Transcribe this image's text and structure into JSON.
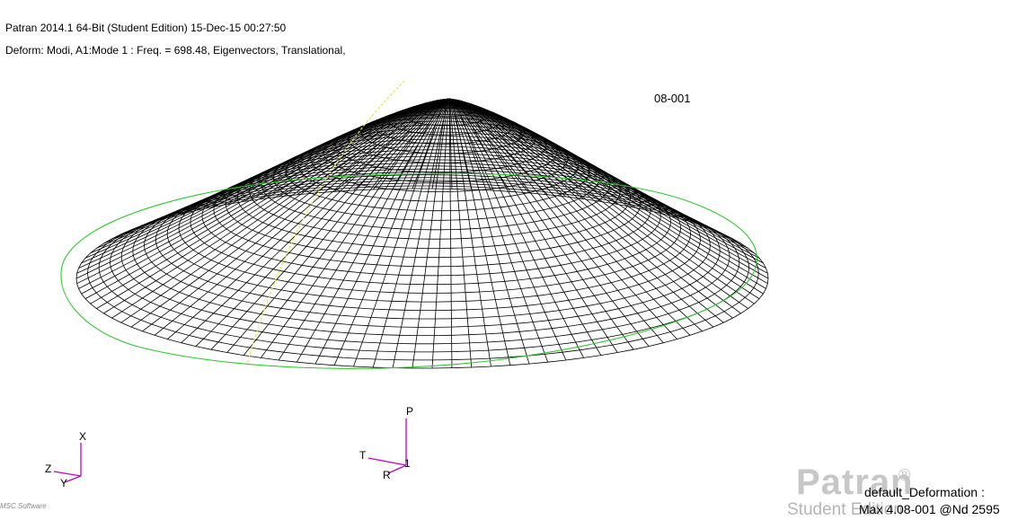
{
  "header": {
    "line1": "Patran 2014.1 64-Bit  (Student Edition) 15-Dec-15 00:27:50",
    "line2": "Deform: Modi, A1:Mode 1 : Freq. = 698.48, Eigenvectors, Translational,"
  },
  "max_marker": "08-001",
  "global_triad": {
    "x": "X",
    "y": "Y",
    "z": "Z"
  },
  "local_triad": {
    "p": "P",
    "t": "T",
    "r": "R",
    "id": "1"
  },
  "brand": {
    "name": "Patran",
    "registered": "®",
    "edition": "Student Edition"
  },
  "logo_text": "MSC Software",
  "deformation": {
    "title": "default_Deformation :",
    "max": "Max 4.08-001 @Nd 2595"
  },
  "colors": {
    "mesh": "#000000",
    "undeformed_outline": "#2ec92e",
    "axis_line": "#e6e64a",
    "triad": "#c400c4"
  }
}
